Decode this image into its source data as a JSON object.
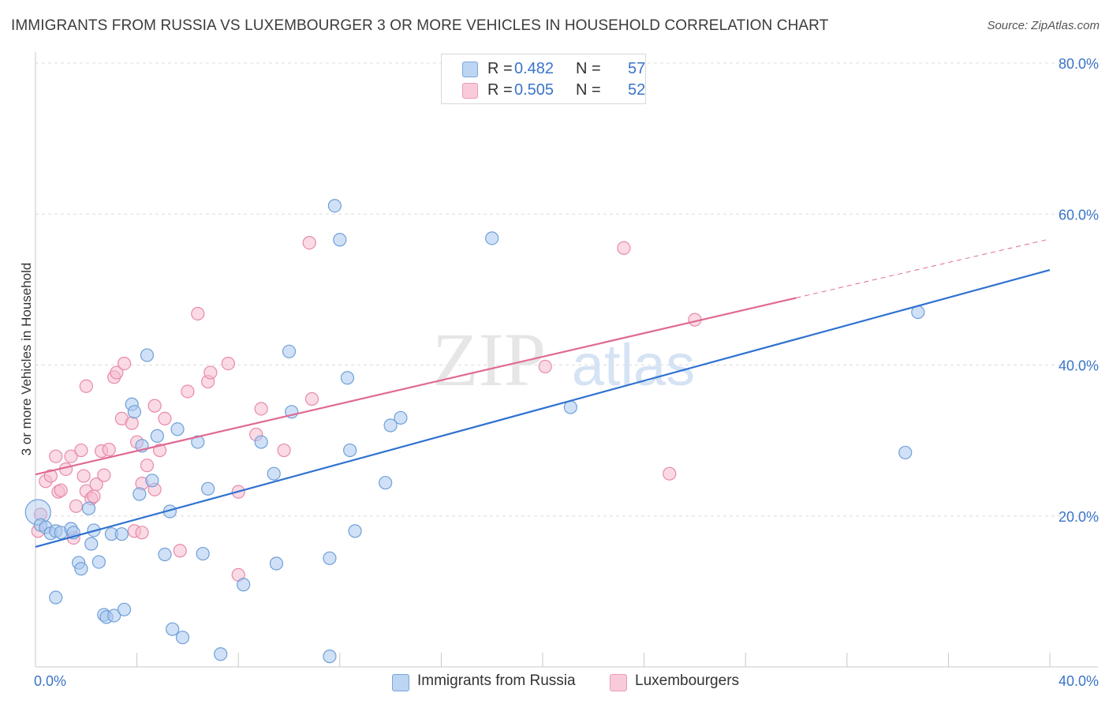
{
  "title": "IMMIGRANTS FROM RUSSIA VS LUXEMBOURGER 3 OR MORE VEHICLES IN HOUSEHOLD CORRELATION CHART",
  "source": "Source: ZipAtlas.com",
  "watermark": {
    "zip": "ZIP",
    "atlas": "atlas"
  },
  "colors": {
    "blue_fill": "#a9c8f0",
    "blue_stroke": "#6f9fd8",
    "blue_line": "#2f72d0",
    "pink_fill": "#f6bcd0",
    "pink_stroke": "#e88aa8",
    "pink_line": "#e06a93",
    "tick_text": "#3a74c9",
    "grid": "#dcdcdc"
  },
  "legend_top": [
    {
      "r_label": "R =",
      "r_value": "0.482",
      "n_label": "N =",
      "n_value": "57"
    },
    {
      "r_label": "R =",
      "r_value": "0.505",
      "n_label": "N =",
      "n_value": "52"
    }
  ],
  "chart_data": {
    "type": "scatter",
    "title": "IMMIGRANTS FROM RUSSIA VS LUXEMBOURGER 3 OR MORE VEHICLES IN HOUSEHOLD CORRELATION CHART",
    "xlabel": "",
    "ylabel": "3 or more Vehicles in Household",
    "xlim": [
      0,
      40
    ],
    "ylim": [
      0,
      80
    ],
    "x_tick_labels": [
      "0.0%",
      "40.0%"
    ],
    "y_ticks": [
      20,
      40,
      60,
      80
    ],
    "y_tick_labels": [
      "20.0%",
      "40.0%",
      "60.0%",
      "80.0%"
    ],
    "grid": true,
    "legend_position": "top-center",
    "series": [
      {
        "name": "Immigrants from Russia",
        "trend": {
          "x0": 0,
          "y0": 15.9,
          "x1": 40,
          "y1": 52.6,
          "dashed_from": null
        },
        "points": [
          [
            0.1,
            20.5
          ],
          [
            0.2,
            18.8
          ],
          [
            0.4,
            18.5
          ],
          [
            0.6,
            17.7
          ],
          [
            0.8,
            18.0
          ],
          [
            1.0,
            17.8
          ],
          [
            1.4,
            18.3
          ],
          [
            1.5,
            17.8
          ],
          [
            0.8,
            9.2
          ],
          [
            1.7,
            13.8
          ],
          [
            1.8,
            13.0
          ],
          [
            2.1,
            21.0
          ],
          [
            2.2,
            16.3
          ],
          [
            2.3,
            18.1
          ],
          [
            2.5,
            13.9
          ],
          [
            2.7,
            6.9
          ],
          [
            2.8,
            6.6
          ],
          [
            3.1,
            6.8
          ],
          [
            3.0,
            17.6
          ],
          [
            3.4,
            17.6
          ],
          [
            3.5,
            7.6
          ],
          [
            3.8,
            34.8
          ],
          [
            3.9,
            33.8
          ],
          [
            4.1,
            22.9
          ],
          [
            4.2,
            29.3
          ],
          [
            4.4,
            41.3
          ],
          [
            4.6,
            24.7
          ],
          [
            4.8,
            30.6
          ],
          [
            5.1,
            14.9
          ],
          [
            5.3,
            20.6
          ],
          [
            5.4,
            5.0
          ],
          [
            5.6,
            31.5
          ],
          [
            5.8,
            3.9
          ],
          [
            6.4,
            29.8
          ],
          [
            6.6,
            15.0
          ],
          [
            6.8,
            23.6
          ],
          [
            7.3,
            1.7
          ],
          [
            8.2,
            10.9
          ],
          [
            8.9,
            29.8
          ],
          [
            9.4,
            25.6
          ],
          [
            9.5,
            13.7
          ],
          [
            10.0,
            41.8
          ],
          [
            10.1,
            33.8
          ],
          [
            11.6,
            14.4
          ],
          [
            11.8,
            61.1
          ],
          [
            12.0,
            56.6
          ],
          [
            12.3,
            38.3
          ],
          [
            12.4,
            28.7
          ],
          [
            12.6,
            18.0
          ],
          [
            13.8,
            24.4
          ],
          [
            14.0,
            32.0
          ],
          [
            14.4,
            33.0
          ],
          [
            18.0,
            56.8
          ],
          [
            21.1,
            34.4
          ],
          [
            34.3,
            28.4
          ],
          [
            34.8,
            47.0
          ],
          [
            11.6,
            1.4
          ]
        ]
      },
      {
        "name": "Luxembourgers",
        "trend": {
          "x0": 0,
          "y0": 25.5,
          "x1": 40,
          "y1": 56.7,
          "dashed_from": 30.0
        },
        "points": [
          [
            0.1,
            18.0
          ],
          [
            0.2,
            20.2
          ],
          [
            0.4,
            24.6
          ],
          [
            0.6,
            25.3
          ],
          [
            0.8,
            27.9
          ],
          [
            0.9,
            23.2
          ],
          [
            1.0,
            23.4
          ],
          [
            1.2,
            26.2
          ],
          [
            1.4,
            27.9
          ],
          [
            1.5,
            17.1
          ],
          [
            1.6,
            21.3
          ],
          [
            1.8,
            28.7
          ],
          [
            1.9,
            25.3
          ],
          [
            2.0,
            23.3
          ],
          [
            2.0,
            37.2
          ],
          [
            2.2,
            22.3
          ],
          [
            2.3,
            22.6
          ],
          [
            2.4,
            24.2
          ],
          [
            2.6,
            28.6
          ],
          [
            2.7,
            25.4
          ],
          [
            2.9,
            28.8
          ],
          [
            3.1,
            38.4
          ],
          [
            3.2,
            39.0
          ],
          [
            3.4,
            32.9
          ],
          [
            3.5,
            40.2
          ],
          [
            3.8,
            32.3
          ],
          [
            3.9,
            18.0
          ],
          [
            4.0,
            29.8
          ],
          [
            4.2,
            24.3
          ],
          [
            4.2,
            17.8
          ],
          [
            4.4,
            26.7
          ],
          [
            4.7,
            34.6
          ],
          [
            4.7,
            23.5
          ],
          [
            4.9,
            28.7
          ],
          [
            5.1,
            32.9
          ],
          [
            5.7,
            15.4
          ],
          [
            6.0,
            36.5
          ],
          [
            6.4,
            46.8
          ],
          [
            6.8,
            37.8
          ],
          [
            6.9,
            39.0
          ],
          [
            7.6,
            40.2
          ],
          [
            8.0,
            12.2
          ],
          [
            8.0,
            23.2
          ],
          [
            8.7,
            30.8
          ],
          [
            8.9,
            34.2
          ],
          [
            9.8,
            28.7
          ],
          [
            10.8,
            56.2
          ],
          [
            10.9,
            35.5
          ],
          [
            20.1,
            39.8
          ],
          [
            23.2,
            55.5
          ],
          [
            25.0,
            25.6
          ],
          [
            26.0,
            46.0
          ]
        ]
      }
    ]
  }
}
